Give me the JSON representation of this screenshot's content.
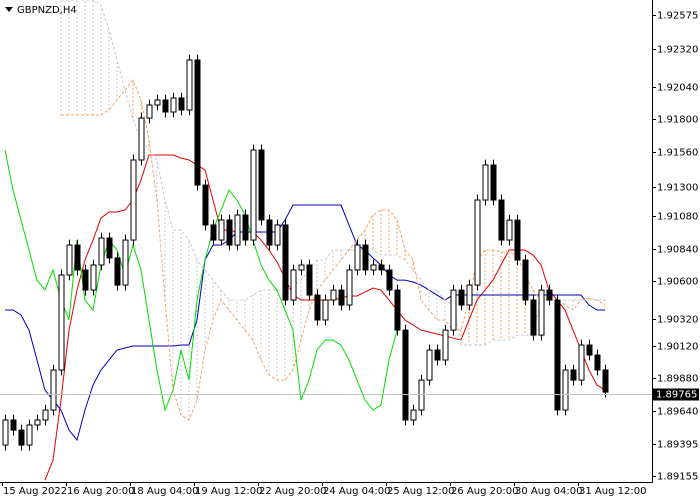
{
  "chart_data": {
    "type": "candlestick",
    "title": "GBPNZD,H4",
    "categories": [
      "15 Aug 2022",
      null,
      null,
      null,
      null,
      null,
      null,
      null,
      "16 Aug 20:00",
      null,
      null,
      null,
      null,
      null,
      null,
      null,
      "18 Aug 04:00",
      null,
      null,
      null,
      null,
      null,
      null,
      null,
      "19 Aug 12:00",
      null,
      null,
      null,
      null,
      null,
      null,
      null,
      "22 Aug 20:00",
      null,
      null,
      null,
      null,
      null,
      null,
      null,
      "24 Aug 04:00",
      null,
      null,
      null,
      null,
      null,
      null,
      null,
      "25 Aug 12:00",
      null,
      null,
      null,
      null,
      null,
      null,
      null,
      "26 Aug 20:00",
      null,
      null,
      null,
      null,
      null,
      null,
      null,
      "30 Aug 04:00",
      null,
      null,
      null,
      null,
      null,
      null,
      null,
      "31 Aug 12:00",
      null,
      null,
      null
    ],
    "open": [
      1.89384,
      1.8957,
      1.89495,
      1.89384,
      1.89533,
      1.8957,
      1.89644,
      1.89941,
      1.90646,
      1.90868,
      1.90683,
      1.90534,
      1.9072,
      1.9092,
      1.90772,
      1.90571,
      1.90905,
      1.91499,
      1.9181,
      1.91907,
      1.91944,
      1.91855,
      1.91959,
      1.9187,
      1.92241,
      1.91313,
      1.91017,
      1.90905,
      1.91054,
      1.90868,
      1.91091,
      1.90905,
      1.91573,
      1.91054,
      1.90868,
      1.91017,
      1.9046,
      1.90683,
      1.9072,
      1.90497,
      1.90312,
      1.9046,
      1.90534,
      1.90423,
      1.90683,
      1.90868,
      1.90683,
      1.9072,
      1.90683,
      1.90534,
      1.90237,
      1.8957,
      1.89644,
      1.89866,
      1.90089,
      1.90015,
      1.90237,
      1.90534,
      1.90423,
      1.90571,
      1.91202,
      1.91462,
      1.91202,
      1.90905,
      1.91053,
      1.90757,
      1.9046,
      1.902,
      1.90534,
      1.9046,
      1.89644,
      1.89941,
      1.89866,
      1.90126,
      1.90052,
      1.89941
    ],
    "high": [
      1.8961,
      1.8961,
      1.89535,
      1.89573,
      1.8961,
      1.89684,
      1.89981,
      1.90686,
      1.90908,
      1.90908,
      1.90723,
      1.9076,
      1.9096,
      1.9096,
      1.90812,
      1.90945,
      1.91539,
      1.9185,
      1.91947,
      1.91984,
      1.91984,
      1.91999,
      1.91999,
      1.92281,
      1.92281,
      1.91353,
      1.91057,
      1.91094,
      1.91094,
      1.91131,
      1.91131,
      1.91613,
      1.91613,
      1.91094,
      1.91057,
      1.91057,
      1.90723,
      1.9076,
      1.9076,
      1.90537,
      1.905,
      1.90574,
      1.90574,
      1.90723,
      1.90908,
      1.90908,
      1.9076,
      1.9076,
      1.90723,
      1.90574,
      1.90277,
      1.89684,
      1.89906,
      1.90129,
      1.90129,
      1.90277,
      1.90574,
      1.90574,
      1.90611,
      1.91242,
      1.91502,
      1.91502,
      1.91242,
      1.91093,
      1.91093,
      1.90797,
      1.905,
      1.90574,
      1.90574,
      1.905,
      1.89981,
      1.89981,
      1.90166,
      1.90166,
      1.90092,
      1.89981
    ],
    "low": [
      1.89344,
      1.89455,
      1.89344,
      1.89344,
      1.89493,
      1.8953,
      1.89604,
      1.89901,
      1.90606,
      1.90643,
      1.90494,
      1.90494,
      1.9068,
      1.90732,
      1.90531,
      1.90531,
      1.90865,
      1.91459,
      1.9177,
      1.91867,
      1.91815,
      1.91815,
      1.9183,
      1.9183,
      1.91273,
      1.90977,
      1.90865,
      1.90865,
      1.90828,
      1.90828,
      1.90865,
      1.90865,
      1.91014,
      1.90828,
      1.90828,
      1.9042,
      1.9042,
      1.90643,
      1.90457,
      1.90272,
      1.90272,
      1.9042,
      1.90383,
      1.90383,
      1.90643,
      1.90643,
      1.90643,
      1.90643,
      1.90494,
      1.90197,
      1.8953,
      1.8953,
      1.89604,
      1.89826,
      1.89975,
      1.89975,
      1.90197,
      1.90383,
      1.90383,
      1.90531,
      1.91162,
      1.91162,
      1.90865,
      1.90865,
      1.90717,
      1.9042,
      1.9016,
      1.9016,
      1.9042,
      1.89604,
      1.89604,
      1.89826,
      1.89826,
      1.90012,
      1.89901,
      1.89737
    ],
    "close": [
      1.8957,
      1.89495,
      1.89384,
      1.89533,
      1.8957,
      1.89644,
      1.89941,
      1.90646,
      1.90868,
      1.90683,
      1.90534,
      1.9072,
      1.9092,
      1.90772,
      1.90571,
      1.90905,
      1.91499,
      1.9181,
      1.91907,
      1.91944,
      1.91855,
      1.91959,
      1.9187,
      1.92241,
      1.91313,
      1.91017,
      1.90905,
      1.91054,
      1.90868,
      1.91091,
      1.90905,
      1.91573,
      1.91054,
      1.90868,
      1.91017,
      1.9046,
      1.90683,
      1.9072,
      1.90497,
      1.90312,
      1.9046,
      1.90534,
      1.90423,
      1.90683,
      1.90868,
      1.90683,
      1.9072,
      1.90683,
      1.90534,
      1.90237,
      1.8957,
      1.89644,
      1.89866,
      1.90089,
      1.90015,
      1.90237,
      1.90534,
      1.90423,
      1.90571,
      1.91202,
      1.91462,
      1.91202,
      1.90905,
      1.91053,
      1.90757,
      1.9046,
      1.902,
      1.90534,
      1.9046,
      1.89644,
      1.89941,
      1.89866,
      1.90126,
      1.90052,
      1.89941,
      1.89777
    ],
    "up_color": "#ffffff",
    "down_color": "#000000",
    "indicators": [
      {
        "color": "#e00000",
        "style": "solid",
        "values": [
          null,
          null,
          null,
          null,
          null,
          1.89124,
          1.89273,
          1.89718,
          1.90237,
          1.90534,
          1.90757,
          1.90905,
          1.91068,
          1.91113,
          1.91113,
          1.91128,
          1.91202,
          1.9135,
          1.91536,
          1.91536,
          1.91536,
          1.91536,
          1.91514,
          1.91499,
          1.91462,
          1.91425,
          1.91202,
          1.90979,
          1.90979,
          1.90965,
          1.90965,
          1.90965,
          1.90905,
          1.90831,
          1.90742,
          1.90623,
          1.90497,
          1.9046,
          1.9046,
          1.9046,
          1.9046,
          1.9046,
          1.90475,
          1.9049,
          1.9049,
          1.90519,
          1.90549,
          1.90534,
          1.9046,
          1.90386,
          1.90312,
          1.90275,
          1.90237,
          1.90223,
          1.90208,
          1.90193,
          1.90178,
          1.90163,
          1.90312,
          1.9046,
          1.90534,
          1.90608,
          1.9072,
          1.90831,
          1.90831,
          1.90831,
          1.90794,
          1.9072,
          1.90534,
          1.9046,
          1.90386,
          1.90237,
          1.90089,
          1.89941,
          1.89829,
          1.89792
        ]
      },
      {
        "color": "#0000b4",
        "style": "solid",
        "values": [
          1.90386,
          1.90386,
          1.90349,
          1.90237,
          1.90015,
          1.89792,
          1.89718,
          1.89644,
          1.89495,
          1.89421,
          1.89644,
          1.89829,
          1.89941,
          1.90015,
          1.90089,
          1.90104,
          1.90119,
          1.90119,
          1.90119,
          1.90119,
          1.90119,
          1.90119,
          1.90126,
          1.90126,
          1.90312,
          1.90757,
          1.90868,
          1.90868,
          1.90905,
          1.90965,
          1.90965,
          1.90965,
          1.90965,
          1.90965,
          1.90965,
          1.91054,
          1.91165,
          1.91165,
          1.91165,
          1.91165,
          1.91165,
          1.91165,
          1.91165,
          1.91017,
          1.90868,
          1.90831,
          1.90772,
          1.9072,
          1.90646,
          1.90608,
          1.90608,
          1.90594,
          1.90571,
          1.90534,
          1.90497,
          1.9046,
          1.90497,
          1.90497,
          1.90497,
          1.90497,
          1.90497,
          1.90497,
          1.90497,
          1.90497,
          1.90497,
          1.90497,
          1.90497,
          1.90497,
          1.90497,
          1.90497,
          1.90497,
          1.90497,
          1.90497,
          1.90423,
          1.90386,
          1.90386
        ]
      },
      {
        "color": "#00dc00",
        "style": "solid",
        "values": [
          1.91573,
          1.91276,
          1.91054,
          1.90831,
          1.90608,
          1.90534,
          1.90683,
          1.9046,
          1.90312,
          1.90905,
          1.9046,
          1.90386,
          1.9072,
          1.90905,
          1.90831,
          1.90646,
          1.90868,
          1.90683,
          1.90312,
          1.89941,
          1.89644,
          1.89792,
          1.90089,
          1.89866,
          1.9046,
          1.90757,
          1.90979,
          1.91128,
          1.91276,
          1.91202,
          1.91091,
          1.90905,
          1.9072,
          1.90608,
          1.90534,
          1.90386,
          1.90237,
          1.89718,
          1.89866,
          1.90089,
          1.90163,
          1.90163,
          1.90126,
          1.90015,
          1.89866,
          1.89718,
          1.89644,
          1.89681,
          1.90015,
          1.90237,
          null,
          null,
          null,
          null,
          null,
          null,
          null,
          null,
          null,
          null,
          null,
          null,
          null,
          null,
          null,
          null,
          null,
          null,
          null,
          null,
          null,
          null,
          null,
          null,
          null,
          null
        ]
      },
      {
        "color": "#f4a460",
        "style": "dashed",
        "values": [
          null,
          null,
          null,
          null,
          null,
          null,
          null,
          1.91833,
          1.91833,
          1.91833,
          1.91833,
          1.91833,
          1.91833,
          1.9187,
          1.91944,
          1.92018,
          1.92092,
          1.91944,
          1.91647,
          1.91202,
          1.9046,
          1.89792,
          1.89607,
          1.8957,
          1.89718,
          1.90089,
          1.90312,
          1.9046,
          1.90386,
          1.90312,
          1.90237,
          1.90163,
          1.90015,
          1.89904,
          1.89866,
          1.89866,
          1.89941,
          1.90163,
          1.90386,
          1.90534,
          1.90608,
          1.90683,
          1.90757,
          1.90831,
          1.90905,
          1.90979,
          1.91091,
          1.91128,
          1.91128,
          1.91054,
          1.90831,
          1.90757,
          1.9046,
          1.90386,
          1.90312,
          1.90312,
          1.90237,
          1.90237,
          1.9046,
          1.90757,
          1.90831,
          1.90831,
          1.90816,
          1.90816,
          1.90794,
          1.90646,
          1.90534,
          1.9046,
          1.9046,
          1.9046,
          1.90423,
          1.90386,
          1.9046,
          1.90475,
          1.9046,
          1.90423
        ]
      },
      {
        "color": "#c8c8d2",
        "style": "dashed",
        "values": [
          null,
          null,
          null,
          null,
          null,
          null,
          null,
          1.92686,
          1.92686,
          1.92686,
          1.92686,
          1.92686,
          1.92649,
          1.92463,
          1.92241,
          1.92018,
          1.91796,
          1.91647,
          1.91573,
          1.91499,
          1.91202,
          1.90979,
          1.90979,
          1.90905,
          1.90757,
          1.90683,
          1.90608,
          1.90534,
          1.9046,
          1.9046,
          1.9046,
          1.90497,
          1.90534,
          1.90534,
          1.90534,
          1.90534,
          1.90571,
          1.90608,
          1.90683,
          1.90757,
          1.90757,
          1.90831,
          1.90831,
          1.90831,
          1.90831,
          1.90831,
          1.90831,
          1.90794,
          1.90794,
          1.90794,
          1.90757,
          1.90683,
          1.90608,
          1.90534,
          1.90534,
          1.9046,
          1.90423,
          1.90126,
          1.90126,
          1.90126,
          1.90126,
          1.90163,
          1.90163,
          1.90163,
          1.902,
          1.902,
          1.902,
          1.9046,
          1.9046,
          1.9046,
          1.9046,
          1.9046,
          1.9046,
          1.9046,
          1.9046,
          1.9046
        ]
      }
    ],
    "last_price": 1.89765,
    "ylim": [
      1.8911,
      1.92686
    ],
    "yticks": [
      1.92575,
      {
        "value": 1.9232,
        "label": "1.92320"
      },
      {
        "value": 1.9204,
        "label": "1.92040"
      },
      {
        "value": 1.918,
        "label": "1.91800"
      },
      {
        "value": 1.9156,
        "label": "1.91560"
      },
      {
        "value": 1.913,
        "label": "1.91300"
      },
      {
        "value": 1.9108,
        "label": "1.91080"
      },
      {
        "value": 1.9084,
        "label": "1.90840"
      },
      {
        "value": 1.906,
        "label": "1.90600"
      },
      {
        "value": 1.9032,
        "label": "1.90320"
      },
      {
        "value": 1.9012,
        "label": "1.90120"
      },
      {
        "value": 1.8988,
        "label": "1.89880"
      },
      {
        "value": 1.8964,
        "label": "1.89640"
      },
      1.89395,
      1.89155
    ]
  }
}
